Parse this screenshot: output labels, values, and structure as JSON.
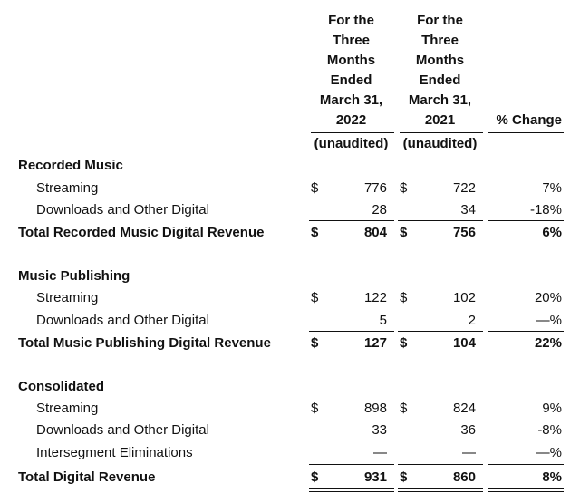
{
  "header": {
    "col1_lines": [
      "For the",
      "Three",
      "Months",
      "Ended",
      "March 31,",
      "2022"
    ],
    "col2_lines": [
      "For the",
      "Three",
      "Months",
      "Ended",
      "March 31,",
      "2021"
    ],
    "col3": "% Change",
    "unaudited": "(unaudited)"
  },
  "sections": [
    {
      "title": "Recorded Music",
      "rows": [
        {
          "label": "Streaming",
          "d1": "$",
          "v1": "776",
          "d2": "$",
          "v2": "722",
          "pct": "7%"
        },
        {
          "label": "Downloads and Other Digital",
          "d1": "",
          "v1": "28",
          "d2": "",
          "v2": "34",
          "pct": "-18%"
        }
      ],
      "total": {
        "label": "Total Recorded Music Digital Revenue",
        "d1": "$",
        "v1": "804",
        "d2": "$",
        "v2": "756",
        "pct": "6%"
      }
    },
    {
      "title": "Music Publishing",
      "rows": [
        {
          "label": "Streaming",
          "d1": "$",
          "v1": "122",
          "d2": "$",
          "v2": "102",
          "pct": "20%"
        },
        {
          "label": "Downloads and Other Digital",
          "d1": "",
          "v1": "5",
          "d2": "",
          "v2": "2",
          "pct": "—%"
        }
      ],
      "total": {
        "label": "Total Music Publishing Digital Revenue",
        "d1": "$",
        "v1": "127",
        "d2": "$",
        "v2": "104",
        "pct": "22%"
      }
    },
    {
      "title": "Consolidated",
      "rows": [
        {
          "label": "Streaming",
          "d1": "$",
          "v1": "898",
          "d2": "$",
          "v2": "824",
          "pct": "9%"
        },
        {
          "label": "Downloads and Other Digital",
          "d1": "",
          "v1": "33",
          "d2": "",
          "v2": "36",
          "pct": "-8%"
        },
        {
          "label": "Intersegment Eliminations",
          "d1": "",
          "v1": "—",
          "d2": "",
          "v2": "—",
          "pct": "—%"
        }
      ],
      "total": {
        "label": "Total Digital Revenue",
        "d1": "$",
        "v1": "931",
        "d2": "$",
        "v2": "860",
        "pct": "8%"
      }
    }
  ]
}
